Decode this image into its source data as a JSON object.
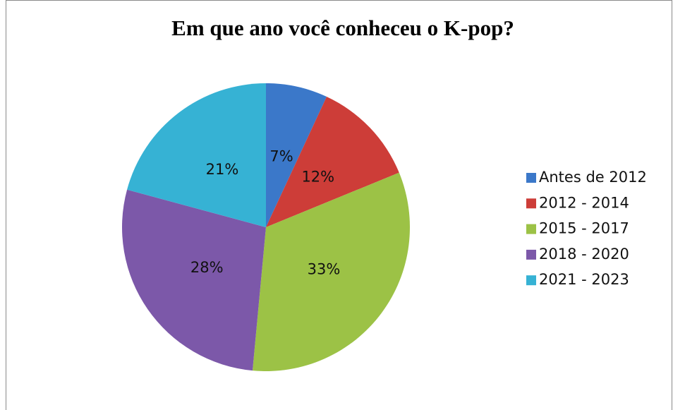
{
  "chart_data": {
    "type": "pie",
    "title": "Em que ano você conheceu o K-pop?",
    "categories": [
      "Antes de 2012",
      "2012 - 2014",
      "2015 - 2017",
      "2018 - 2020",
      "2021 - 2023"
    ],
    "values": [
      7,
      12,
      33,
      28,
      21
    ],
    "value_labels": [
      "7%",
      "12%",
      "33%",
      "28%",
      "21%"
    ],
    "colors": [
      "#3b78c9",
      "#cd3d38",
      "#9cc246",
      "#7c58a9",
      "#36b2d4"
    ],
    "legend": "right"
  }
}
